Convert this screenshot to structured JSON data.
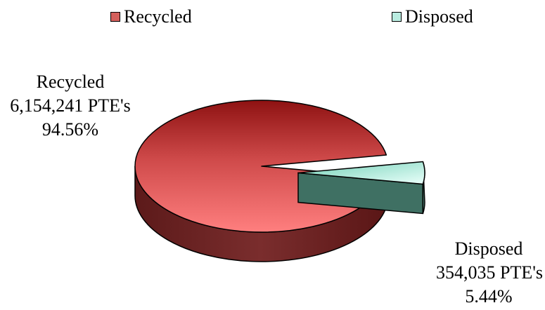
{
  "chart_data": {
    "type": "pie",
    "title": "",
    "three_d": true,
    "exploded_slice": "Disposed",
    "legend_position": "top",
    "categories": [
      "Recycled",
      "Disposed"
    ],
    "values": [
      6154241,
      354035
    ],
    "percentages": [
      94.56,
      5.44
    ],
    "unit": "PTE's",
    "colors": {
      "Recycled": "#e06666",
      "Disposed": "#b9ece0"
    },
    "legend": [
      {
        "label": "Recycled",
        "color": "#c0504d"
      },
      {
        "label": "Disposed",
        "color": "#aee8d6"
      }
    ],
    "data_labels": [
      {
        "name": "Recycled",
        "value_text": "6,154,241 PTE's",
        "percent_text": "94.56%"
      },
      {
        "name": "Disposed",
        "value_text": "354,035 PTE's",
        "percent_text": "5.44%"
      }
    ]
  }
}
